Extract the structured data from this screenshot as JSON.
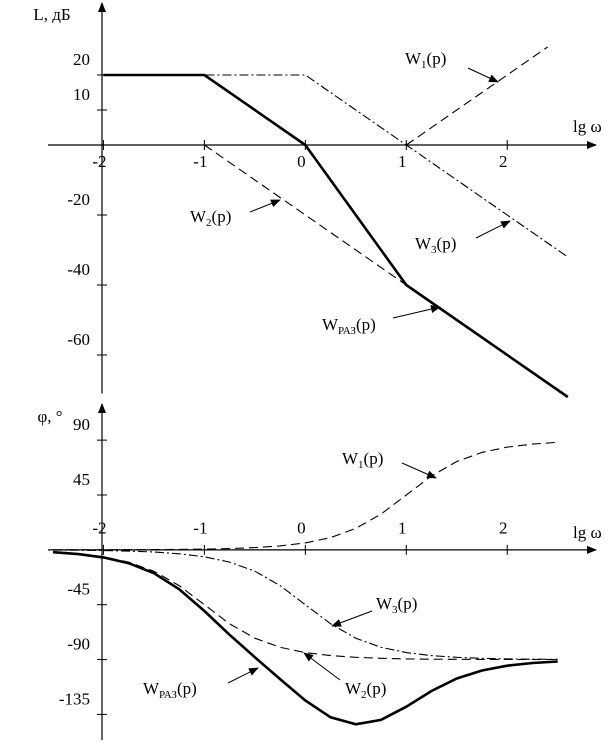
{
  "chart_data": [
    {
      "type": "line",
      "y_label": "L, дБ",
      "x_label": "lg ω",
      "xlim": [
        -2.45,
        2.8
      ],
      "ylim": [
        -71,
        40
      ],
      "xticks": [
        -2,
        -1,
        0,
        1,
        2
      ],
      "yticks": [
        20,
        10,
        -20,
        -40,
        -60
      ],
      "series": [
        {
          "name": [
            "W",
            "1",
            "(p)"
          ],
          "color": "#000",
          "line": "dash",
          "x": [
            1,
            2.4
          ],
          "values": [
            0,
            28
          ]
        },
        {
          "name": [
            "W",
            "2",
            "(p)"
          ],
          "color": "#000",
          "line": "dash",
          "x": [
            -1,
            1
          ],
          "values": [
            0,
            -40
          ]
        },
        {
          "name": [
            "W",
            "3",
            "(p)"
          ],
          "color": "#000",
          "line": "dashdot",
          "x": [
            -2,
            0,
            2.6
          ],
          "values": [
            20,
            20,
            -32
          ]
        },
        {
          "name": [
            "W",
            "РАЗ",
            "(p)"
          ],
          "color": "#000",
          "line": "bold",
          "x": [
            -2,
            -1,
            0,
            1,
            2.6
          ],
          "values": [
            20,
            20,
            0,
            -40,
            -72
          ]
        }
      ]
    },
    {
      "type": "line",
      "y_label": "φ, °",
      "x_label": "lg ω",
      "xlim": [
        -2.45,
        2.8
      ],
      "ylim": [
        -156,
        118
      ],
      "xticks": [
        -2,
        -1,
        0,
        1,
        2
      ],
      "yticks": [
        90,
        45,
        -45,
        -90,
        -135
      ],
      "x": [
        -2.5,
        -2.25,
        -2,
        -1.75,
        -1.5,
        -1.25,
        -1,
        -0.75,
        -0.5,
        -0.25,
        0,
        0.25,
        0.5,
        0.75,
        1,
        1.25,
        1.5,
        1.75,
        2,
        2.25,
        2.5
      ],
      "series": [
        {
          "name": [
            "W",
            "1",
            "(p)"
          ],
          "color": "#000",
          "line": "dash",
          "values": [
            0.02,
            0.03,
            0.06,
            0.1,
            0.18,
            0.32,
            0.57,
            1.02,
            1.81,
            3.22,
            5.71,
            10.08,
            17.55,
            29.36,
            45,
            60.64,
            72.45,
            79.92,
            84.29,
            86.78,
            88.19
          ]
        },
        {
          "name": [
            "W",
            "3",
            "(p)"
          ],
          "color": "#000",
          "line": "dashdot",
          "values": [
            -0.18,
            -0.32,
            -0.57,
            -1.02,
            -1.81,
            -3.22,
            -5.71,
            -10.08,
            -17.55,
            -29.36,
            -45,
            -60.64,
            -72.45,
            -79.92,
            -84.29,
            -86.78,
            -88.19,
            -88.98,
            -89.43,
            -89.68,
            -89.82
          ]
        },
        {
          "name": [
            "W",
            "2",
            "(p)"
          ],
          "color": "#000",
          "line": "dash",
          "values": [
            -1.81,
            -3.22,
            -5.71,
            -10.08,
            -17.55,
            -29.36,
            -45,
            -60.64,
            -72.45,
            -79.92,
            -84.29,
            -86.78,
            -88.19,
            -88.98,
            -89.43,
            -89.68,
            -89.82,
            -89.9,
            -89.94,
            -89.97,
            -89.98
          ]
        },
        {
          "name": [
            "W",
            "РАЗ",
            "(p)"
          ],
          "color": "#000",
          "line": "bold",
          "values": [
            -1.97,
            -3.51,
            -6.22,
            -11,
            -19.18,
            -32.26,
            -50.14,
            -69.7,
            -88.19,
            -106.06,
            -123.58,
            -137.34,
            -143.09,
            -139.54,
            -128.72,
            -115.82,
            -105.56,
            -98.96,
            -95.08,
            -92.87,
            -91.61
          ]
        }
      ]
    }
  ]
}
